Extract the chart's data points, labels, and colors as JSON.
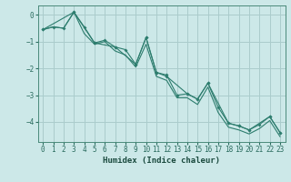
{
  "xlabel": "Humidex (Indice chaleur)",
  "ylabel": "",
  "background_color": "#cce8e8",
  "grid_color": "#aacccc",
  "line_color": "#2d7d6e",
  "xlim": [
    -0.5,
    23.5
  ],
  "ylim": [
    -4.75,
    0.35
  ],
  "yticks": [
    0,
    -1,
    -2,
    -3,
    -4
  ],
  "xticks": [
    0,
    1,
    2,
    3,
    4,
    5,
    6,
    7,
    8,
    9,
    10,
    11,
    12,
    13,
    14,
    15,
    16,
    17,
    18,
    19,
    20,
    21,
    22,
    23
  ],
  "series1": [
    [
      0,
      -0.55
    ],
    [
      1,
      -0.45
    ],
    [
      2,
      -0.5
    ],
    [
      3,
      0.1
    ],
    [
      4,
      -0.45
    ],
    [
      5,
      -1.05
    ],
    [
      6,
      -0.95
    ],
    [
      7,
      -1.2
    ],
    [
      8,
      -1.3
    ],
    [
      9,
      -1.85
    ],
    [
      10,
      -0.85
    ],
    [
      11,
      -2.15
    ],
    [
      12,
      -2.25
    ],
    [
      13,
      -3.0
    ],
    [
      14,
      -2.95
    ],
    [
      15,
      -3.15
    ],
    [
      16,
      -2.55
    ],
    [
      17,
      -3.45
    ],
    [
      18,
      -4.05
    ],
    [
      19,
      -4.15
    ],
    [
      20,
      -4.3
    ],
    [
      21,
      -4.1
    ],
    [
      22,
      -3.8
    ],
    [
      23,
      -4.4
    ]
  ],
  "series2": [
    [
      0,
      -0.55
    ],
    [
      1,
      -0.45
    ],
    [
      2,
      -0.5
    ],
    [
      3,
      0.1
    ],
    [
      4,
      -0.7
    ],
    [
      5,
      -1.1
    ],
    [
      6,
      -1.0
    ],
    [
      7,
      -1.35
    ],
    [
      8,
      -1.5
    ],
    [
      9,
      -1.95
    ],
    [
      10,
      -1.1
    ],
    [
      11,
      -2.3
    ],
    [
      12,
      -2.45
    ],
    [
      13,
      -3.1
    ],
    [
      14,
      -3.1
    ],
    [
      15,
      -3.35
    ],
    [
      16,
      -2.7
    ],
    [
      17,
      -3.65
    ],
    [
      18,
      -4.2
    ],
    [
      19,
      -4.3
    ],
    [
      20,
      -4.45
    ],
    [
      21,
      -4.25
    ],
    [
      22,
      -3.95
    ],
    [
      23,
      -4.55
    ]
  ],
  "series3": [
    [
      0,
      -0.55
    ],
    [
      3,
      0.1
    ],
    [
      5,
      -1.05
    ],
    [
      7,
      -1.2
    ],
    [
      9,
      -1.85
    ],
    [
      10,
      -0.85
    ],
    [
      11,
      -2.15
    ],
    [
      12,
      -2.3
    ],
    [
      14,
      -2.95
    ],
    [
      15,
      -3.15
    ],
    [
      16,
      -2.55
    ],
    [
      18,
      -4.05
    ],
    [
      19,
      -4.15
    ],
    [
      20,
      -4.3
    ],
    [
      22,
      -3.8
    ],
    [
      23,
      -4.4
    ]
  ]
}
